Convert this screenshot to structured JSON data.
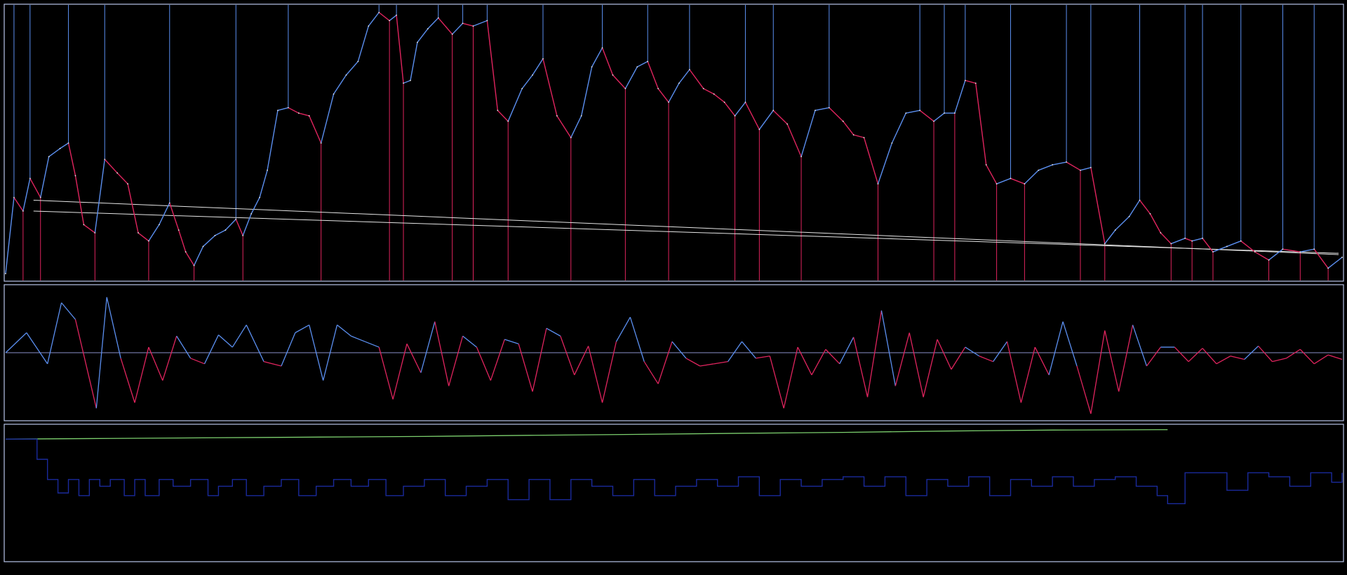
{
  "colors": {
    "background": "#000000",
    "frame": "#b8c4e8",
    "price_up": "#5b8ff0",
    "price_down": "#e0245e",
    "trendline": "#e6e6e6",
    "zero_line": "#8a90c8",
    "equity": "#7ccf6e",
    "position": "#1a2a9c"
  },
  "chart_data": [
    {
      "type": "line",
      "panel": "price",
      "grid": false,
      "legend": "none",
      "ylim": [
        0,
        100
      ],
      "x": [
        0,
        12,
        25,
        35,
        50,
        62,
        78,
        90,
        100,
        112,
        128,
        142,
        160,
        175,
        190,
        205,
        220,
        235,
        248,
        258,
        270,
        283,
        300,
        315,
        330,
        340,
        352,
        364,
        375,
        390,
        405,
        420,
        435,
        452,
        470,
        488,
        505,
        520,
        535,
        550,
        560,
        570,
        580,
        590,
        605,
        620,
        640,
        655,
        670,
        690,
        705,
        720,
        740,
        755,
        770,
        790,
        810,
        825,
        840,
        855,
        870,
        888,
        905,
        920,
        935,
        950,
        965,
        980,
        1000,
        1015,
        1030,
        1045,
        1060,
        1080,
        1100,
        1120,
        1140,
        1160,
        1180,
        1200,
        1215,
        1230,
        1250,
        1270,
        1290,
        1310,
        1330,
        1345,
        1360,
        1375,
        1390,
        1405,
        1420,
        1440,
        1460,
        1480,
        1500,
        1520,
        1540,
        1555,
        1575,
        1590,
        1610,
        1625,
        1640,
        1655,
        1670,
        1690,
        1700,
        1715,
        1730,
        1750,
        1770,
        1790,
        1810,
        1830,
        1855,
        1875,
        1895,
        1915
      ],
      "values": [
        2,
        30,
        25,
        37,
        30,
        45,
        48,
        50,
        38,
        20,
        17,
        44,
        39,
        35,
        17,
        14,
        20,
        28,
        18,
        10,
        5,
        12,
        16,
        18,
        22,
        16,
        24,
        30,
        40,
        62,
        63,
        61,
        60,
        50,
        68,
        75,
        80,
        93,
        98,
        95,
        97,
        72,
        73,
        87,
        92,
        96,
        90,
        94,
        93,
        95,
        62,
        58,
        70,
        75,
        81,
        60,
        52,
        60,
        78,
        85,
        75,
        70,
        78,
        80,
        70,
        65,
        72,
        77,
        70,
        68,
        65,
        60,
        65,
        55,
        62,
        57,
        45,
        62,
        63,
        58,
        53,
        52,
        35,
        50,
        61,
        62,
        58,
        61,
        61,
        73,
        72,
        42,
        35,
        37,
        35,
        40,
        42,
        43,
        40,
        41,
        13,
        18,
        23,
        29,
        24,
        17,
        13,
        15,
        14,
        15,
        10,
        12,
        14,
        10,
        7,
        11,
        10,
        11,
        4,
        8
      ]
    },
    {
      "type": "line",
      "panel": "oscillator",
      "grid": false,
      "legend": "none",
      "ylim": [
        -60,
        60
      ],
      "x": [
        0,
        30,
        60,
        80,
        100,
        130,
        145,
        165,
        185,
        205,
        225,
        245,
        265,
        285,
        305,
        325,
        345,
        370,
        395,
        415,
        435,
        455,
        475,
        495,
        515,
        535,
        555,
        575,
        595,
        615,
        635,
        655,
        675,
        695,
        715,
        735,
        755,
        775,
        795,
        815,
        835,
        855,
        875,
        895,
        915,
        935,
        955,
        975,
        995,
        1015,
        1035,
        1055,
        1075,
        1095,
        1115,
        1135,
        1155,
        1175,
        1195,
        1215,
        1235,
        1255,
        1275,
        1295,
        1315,
        1335,
        1355,
        1375,
        1395,
        1415,
        1435,
        1455,
        1475,
        1495,
        1515,
        1535,
        1555,
        1575,
        1595,
        1615,
        1635,
        1655,
        1675,
        1695,
        1715,
        1735,
        1755,
        1775,
        1795,
        1815,
        1835,
        1855,
        1875,
        1895,
        1915
      ],
      "values": [
        0,
        18,
        -10,
        45,
        30,
        -50,
        50,
        -5,
        -45,
        5,
        -25,
        15,
        -5,
        -10,
        16,
        5,
        25,
        -8,
        -12,
        18,
        25,
        -25,
        25,
        15,
        10,
        5,
        -42,
        8,
        -18,
        28,
        -30,
        15,
        5,
        -25,
        12,
        8,
        -35,
        22,
        15,
        -20,
        6,
        -45,
        10,
        32,
        -8,
        -28,
        10,
        -5,
        -12,
        -10,
        -8,
        10,
        -5,
        -3,
        -50,
        5,
        -20,
        3,
        -10,
        14,
        -40,
        38,
        -30,
        18,
        -40,
        12,
        -15,
        5,
        -3,
        -8,
        10,
        -45,
        5,
        -20,
        28,
        -12,
        -55,
        20,
        -35,
        25,
        -12,
        5,
        5,
        -8,
        4,
        -10,
        -3,
        -6,
        6,
        -8,
        -5,
        3,
        -10,
        -2,
        -6
      ]
    },
    {
      "type": "line",
      "panel": "equity_position",
      "grid": false,
      "legend": "none",
      "ylim": [
        0,
        100
      ],
      "series": [
        {
          "x": [
            0,
            150,
            300,
            450,
            600,
            750,
            900,
            1050,
            1200,
            1350,
            1500,
            1650,
            1665
          ],
          "values": [
            90,
            90.5,
            91,
            91.5,
            92,
            92.8,
            93.5,
            94.3,
            95,
            96,
            96.7,
            97,
            97
          ]
        },
        {
          "x": [
            0,
            38,
            45,
            60,
            75,
            90,
            105,
            120,
            135,
            150,
            170,
            185,
            200,
            220,
            240,
            265,
            290,
            305,
            325,
            345,
            370,
            395,
            420,
            445,
            470,
            495,
            520,
            545,
            570,
            600,
            630,
            660,
            690,
            720,
            750,
            780,
            810,
            840,
            870,
            900,
            930,
            960,
            990,
            1020,
            1050,
            1080,
            1110,
            1140,
            1170,
            1200,
            1230,
            1260,
            1290,
            1320,
            1350,
            1380,
            1410,
            1440,
            1470,
            1500,
            1530,
            1560,
            1590,
            1620,
            1650,
            1665,
            1690,
            1720,
            1750,
            1780,
            1810,
            1840,
            1870,
            1900,
            1915
          ],
          "values": [
            90,
            90,
            75,
            60,
            50,
            60,
            48,
            60,
            55,
            60,
            48,
            60,
            48,
            60,
            55,
            60,
            48,
            55,
            60,
            48,
            55,
            60,
            48,
            55,
            60,
            55,
            60,
            48,
            55,
            60,
            48,
            55,
            60,
            45,
            60,
            45,
            60,
            55,
            48,
            60,
            48,
            55,
            60,
            55,
            62,
            48,
            60,
            55,
            60,
            62,
            55,
            62,
            48,
            60,
            55,
            62,
            48,
            60,
            55,
            62,
            55,
            60,
            62,
            55,
            48,
            42,
            65,
            65,
            52,
            65,
            62,
            55,
            65,
            58,
            65
          ]
        }
      ]
    }
  ]
}
